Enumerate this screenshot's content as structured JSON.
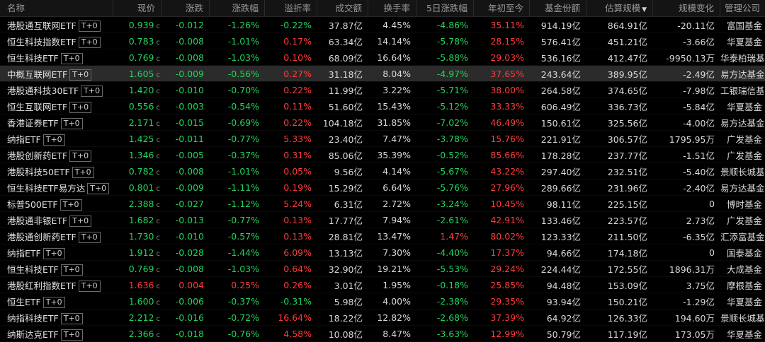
{
  "columns": {
    "name": "名称",
    "price": "现价",
    "chg": "涨跌",
    "pct": "涨跌幅",
    "prem": "溢折率",
    "vol": "成交额",
    "turn": "换手率",
    "d5": "5日涨跌幅",
    "ytd": "年初至今",
    "share": "基金份额",
    "est": "估算规模",
    "scale": "规模变化",
    "mgr": "管理公司",
    "sort_glyph": "▼"
  },
  "price_suffix": "c",
  "tag": "T+0",
  "colors": {
    "up": "#ff3b3b",
    "down": "#22d35d",
    "neutral": "#d8d8d8"
  },
  "rows": [
    {
      "name": "港股通互联网ETF",
      "price": "0.939",
      "chg": "-0.012",
      "pct": "-1.26%",
      "prem": "-0.22%",
      "vol": "37.87亿",
      "turn": "4.45%",
      "d5": "-4.86%",
      "ytd": "35.11%",
      "share": "914.19亿",
      "est": "864.91亿",
      "scale": "-20.11亿",
      "mgr": "富国基金",
      "dir": [
        "dn",
        "dn",
        "dn",
        "dn",
        "",
        "",
        "dn",
        "up"
      ]
    },
    {
      "name": "恒生科技指数ETF",
      "price": "0.783",
      "chg": "-0.008",
      "pct": "-1.01%",
      "prem": "0.17%",
      "vol": "63.34亿",
      "turn": "14.14%",
      "d5": "-5.78%",
      "ytd": "28.15%",
      "share": "576.41亿",
      "est": "451.21亿",
      "scale": "-3.66亿",
      "mgr": "华夏基金",
      "dir": [
        "dn",
        "dn",
        "dn",
        "up",
        "",
        "",
        "dn",
        "up"
      ]
    },
    {
      "name": "恒生科技ETF",
      "price": "0.769",
      "chg": "-0.008",
      "pct": "-1.03%",
      "prem": "0.10%",
      "vol": "68.09亿",
      "turn": "16.64%",
      "d5": "-5.88%",
      "ytd": "29.03%",
      "share": "536.16亿",
      "est": "412.47亿",
      "scale": "-9950.13万",
      "mgr": "华泰柏瑞基金",
      "dir": [
        "dn",
        "dn",
        "dn",
        "up",
        "",
        "",
        "dn",
        "up"
      ]
    },
    {
      "name": "中概互联网ETF",
      "price": "1.605",
      "chg": "-0.009",
      "pct": "-0.56%",
      "prem": "0.27%",
      "vol": "31.18亿",
      "turn": "8.04%",
      "d5": "-4.97%",
      "ytd": "37.65%",
      "share": "243.64亿",
      "est": "389.95亿",
      "scale": "-2.49亿",
      "mgr": "易方达基金",
      "dir": [
        "dn",
        "dn",
        "dn",
        "up",
        "",
        "",
        "dn",
        "up"
      ],
      "sel": true
    },
    {
      "name": "港股通科技30ETF",
      "price": "1.420",
      "chg": "-0.010",
      "pct": "-0.70%",
      "prem": "0.22%",
      "vol": "11.99亿",
      "turn": "3.22%",
      "d5": "-5.71%",
      "ytd": "38.00%",
      "share": "264.58亿",
      "est": "374.65亿",
      "scale": "-7.98亿",
      "mgr": "工银瑞信基金",
      "dir": [
        "dn",
        "dn",
        "dn",
        "up",
        "",
        "",
        "dn",
        "up"
      ]
    },
    {
      "name": "恒生互联网ETF",
      "price": "0.556",
      "chg": "-0.003",
      "pct": "-0.54%",
      "prem": "0.11%",
      "vol": "51.60亿",
      "turn": "15.43%",
      "d5": "-5.12%",
      "ytd": "33.33%",
      "share": "606.49亿",
      "est": "336.73亿",
      "scale": "-5.84亿",
      "mgr": "华夏基金",
      "dir": [
        "dn",
        "dn",
        "dn",
        "up",
        "",
        "",
        "dn",
        "up"
      ]
    },
    {
      "name": "香港证券ETF",
      "price": "2.171",
      "chg": "-0.015",
      "pct": "-0.69%",
      "prem": "0.22%",
      "vol": "104.18亿",
      "turn": "31.85%",
      "d5": "-7.02%",
      "ytd": "46.49%",
      "share": "150.61亿",
      "est": "325.56亿",
      "scale": "-4.00亿",
      "mgr": "易方达基金",
      "dir": [
        "dn",
        "dn",
        "dn",
        "up",
        "",
        "",
        "dn",
        "up"
      ]
    },
    {
      "name": "纳指ETF",
      "price": "1.425",
      "chg": "-0.011",
      "pct": "-0.77%",
      "prem": "5.33%",
      "vol": "23.40亿",
      "turn": "7.47%",
      "d5": "-3.78%",
      "ytd": "15.76%",
      "share": "221.91亿",
      "est": "306.57亿",
      "scale": "1795.95万",
      "mgr": "广发基金",
      "dir": [
        "dn",
        "dn",
        "dn",
        "up",
        "",
        "",
        "dn",
        "up"
      ]
    },
    {
      "name": "港股创新药ETF",
      "price": "1.346",
      "chg": "-0.005",
      "pct": "-0.37%",
      "prem": "0.31%",
      "vol": "85.06亿",
      "turn": "35.39%",
      "d5": "-0.52%",
      "ytd": "85.66%",
      "share": "178.28亿",
      "est": "237.77亿",
      "scale": "-1.51亿",
      "mgr": "广发基金",
      "dir": [
        "dn",
        "dn",
        "dn",
        "up",
        "",
        "",
        "dn",
        "up"
      ]
    },
    {
      "name": "港股科技50ETF",
      "price": "0.782",
      "chg": "-0.008",
      "pct": "-1.01%",
      "prem": "0.05%",
      "vol": "9.56亿",
      "turn": "4.14%",
      "d5": "-5.67%",
      "ytd": "43.22%",
      "share": "297.40亿",
      "est": "232.51亿",
      "scale": "-5.40亿",
      "mgr": "景顺长城基金",
      "dir": [
        "dn",
        "dn",
        "dn",
        "up",
        "",
        "",
        "dn",
        "up"
      ]
    },
    {
      "name": "恒生科技ETF易方达",
      "price": "0.801",
      "chg": "-0.009",
      "pct": "-1.11%",
      "prem": "0.19%",
      "vol": "15.29亿",
      "turn": "6.64%",
      "d5": "-5.76%",
      "ytd": "27.96%",
      "share": "289.66亿",
      "est": "231.96亿",
      "scale": "-2.40亿",
      "mgr": "易方达基金",
      "dir": [
        "dn",
        "dn",
        "dn",
        "up",
        "",
        "",
        "dn",
        "up"
      ]
    },
    {
      "name": "标普500ETF",
      "price": "2.388",
      "chg": "-0.027",
      "pct": "-1.12%",
      "prem": "5.24%",
      "vol": "6.31亿",
      "turn": "2.72%",
      "d5": "-3.24%",
      "ytd": "10.45%",
      "share": "98.11亿",
      "est": "225.15亿",
      "scale": "0",
      "mgr": "博时基金",
      "dir": [
        "dn",
        "dn",
        "dn",
        "up",
        "",
        "",
        "dn",
        "up"
      ]
    },
    {
      "name": "港股通非银ETF",
      "price": "1.682",
      "chg": "-0.013",
      "pct": "-0.77%",
      "prem": "0.13%",
      "vol": "17.77亿",
      "turn": "7.94%",
      "d5": "-2.61%",
      "ytd": "42.91%",
      "share": "133.46亿",
      "est": "223.57亿",
      "scale": "2.73亿",
      "mgr": "广发基金",
      "dir": [
        "dn",
        "dn",
        "dn",
        "up",
        "",
        "",
        "dn",
        "up"
      ]
    },
    {
      "name": "港股通创新药ETF",
      "price": "1.730",
      "chg": "-0.010",
      "pct": "-0.57%",
      "prem": "0.13%",
      "vol": "28.81亿",
      "turn": "13.47%",
      "d5": "1.47%",
      "ytd": "80.02%",
      "share": "123.33亿",
      "est": "211.50亿",
      "scale": "-6.35亿",
      "mgr": "汇添富基金",
      "dir": [
        "dn",
        "dn",
        "dn",
        "up",
        "",
        "",
        "up",
        "up"
      ]
    },
    {
      "name": "纳指ETF",
      "price": "1.912",
      "chg": "-0.028",
      "pct": "-1.44%",
      "prem": "6.09%",
      "vol": "13.13亿",
      "turn": "7.30%",
      "d5": "-4.40%",
      "ytd": "17.37%",
      "share": "94.66亿",
      "est": "174.18亿",
      "scale": "0",
      "mgr": "国泰基金",
      "dir": [
        "dn",
        "dn",
        "dn",
        "up",
        "",
        "",
        "dn",
        "up"
      ]
    },
    {
      "name": "恒生科技ETF",
      "price": "0.769",
      "chg": "-0.008",
      "pct": "-1.03%",
      "prem": "0.64%",
      "vol": "32.90亿",
      "turn": "19.21%",
      "d5": "-5.53%",
      "ytd": "29.24%",
      "share": "224.44亿",
      "est": "172.55亿",
      "scale": "1896.31万",
      "mgr": "大成基金",
      "dir": [
        "dn",
        "dn",
        "dn",
        "up",
        "",
        "",
        "dn",
        "up"
      ]
    },
    {
      "name": "港股红利指数ETF",
      "price": "1.636",
      "chg": "0.004",
      "pct": "0.25%",
      "prem": "0.26%",
      "vol": "3.01亿",
      "turn": "1.95%",
      "d5": "-0.18%",
      "ytd": "25.85%",
      "share": "94.48亿",
      "est": "153.09亿",
      "scale": "3.75亿",
      "mgr": "摩根基金",
      "dir": [
        "up",
        "up",
        "up",
        "up",
        "",
        "",
        "dn",
        "up"
      ]
    },
    {
      "name": "恒生ETF",
      "price": "1.600",
      "chg": "-0.006",
      "pct": "-0.37%",
      "prem": "-0.31%",
      "vol": "5.98亿",
      "turn": "4.00%",
      "d5": "-2.38%",
      "ytd": "29.35%",
      "share": "93.94亿",
      "est": "150.21亿",
      "scale": "-1.29亿",
      "mgr": "华夏基金",
      "dir": [
        "dn",
        "dn",
        "dn",
        "dn",
        "",
        "",
        "dn",
        "up"
      ]
    },
    {
      "name": "纳指科技ETF",
      "price": "2.212",
      "chg": "-0.016",
      "pct": "-0.72%",
      "prem": "16.64%",
      "vol": "18.22亿",
      "turn": "12.82%",
      "d5": "-2.68%",
      "ytd": "37.39%",
      "share": "64.92亿",
      "est": "126.33亿",
      "scale": "194.60万",
      "mgr": "景顺长城基金",
      "dir": [
        "dn",
        "dn",
        "dn",
        "up",
        "",
        "",
        "dn",
        "up"
      ]
    },
    {
      "name": "纳斯达克ETF",
      "price": "2.366",
      "chg": "-0.018",
      "pct": "-0.76%",
      "prem": "4.58%",
      "vol": "10.08亿",
      "turn": "8.47%",
      "d5": "-3.63%",
      "ytd": "12.99%",
      "share": "50.79亿",
      "est": "117.19亿",
      "scale": "173.05万",
      "mgr": "华夏基金",
      "dir": [
        "dn",
        "dn",
        "dn",
        "up",
        "",
        "",
        "dn",
        "up"
      ]
    }
  ]
}
